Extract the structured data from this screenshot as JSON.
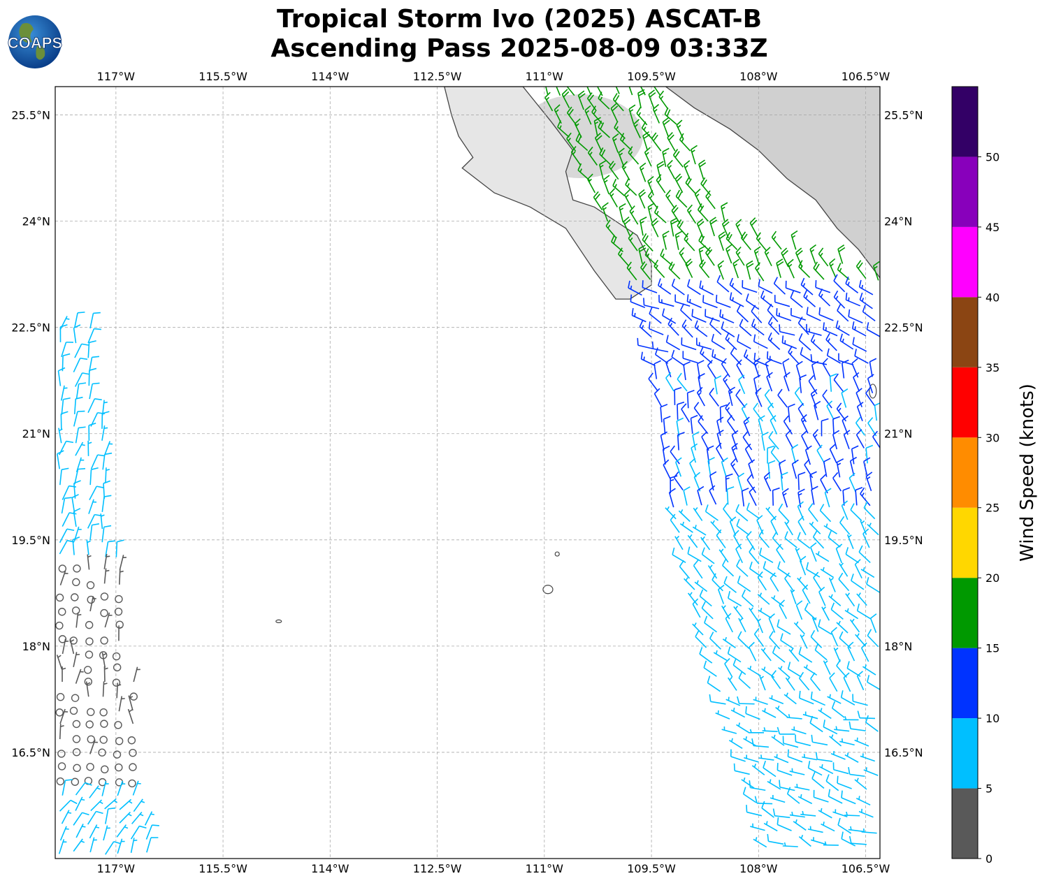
{
  "header": {
    "title_line1": "Tropical Storm Ivo (2025) ASCAT-B",
    "title_line2": "Ascending Pass 2025-08-09 03:33Z",
    "logo_text": "COAPS"
  },
  "map": {
    "lon_range": [
      -117.85,
      -106.3
    ],
    "lat_range": [
      15.0,
      25.9
    ],
    "lon_ticks": [
      {
        "value": -117.0,
        "label": "117°W"
      },
      {
        "value": -115.5,
        "label": "115.5°W"
      },
      {
        "value": -114.0,
        "label": "114°W"
      },
      {
        "value": -112.5,
        "label": "112.5°W"
      },
      {
        "value": -111.0,
        "label": "111°W"
      },
      {
        "value": -109.5,
        "label": "109.5°W"
      },
      {
        "value": -108.0,
        "label": "108°W"
      },
      {
        "value": -106.5,
        "label": "106.5°W"
      }
    ],
    "lat_ticks": [
      {
        "value": 25.5,
        "label": "25.5°N"
      },
      {
        "value": 24.0,
        "label": "24°N"
      },
      {
        "value": 22.5,
        "label": "22.5°N"
      },
      {
        "value": 21.0,
        "label": "21°N"
      },
      {
        "value": 19.5,
        "label": "19.5°N"
      },
      {
        "value": 18.0,
        "label": "18°N"
      },
      {
        "value": 16.5,
        "label": "16.5°N"
      }
    ],
    "gridlines": true,
    "baja_coast": [
      [
        -112.4,
        25.9
      ],
      [
        -112.3,
        25.5
      ],
      [
        -112.2,
        25.2
      ],
      [
        -112.0,
        24.9
      ],
      [
        -112.15,
        24.75
      ],
      [
        -111.7,
        24.4
      ],
      [
        -111.2,
        24.2
      ],
      [
        -110.7,
        23.9
      ],
      [
        -110.3,
        23.3
      ],
      [
        -110.0,
        22.9
      ],
      [
        -109.8,
        22.9
      ],
      [
        -109.5,
        23.1
      ],
      [
        -109.5,
        23.4
      ],
      [
        -109.7,
        23.8
      ],
      [
        -110.3,
        24.2
      ],
      [
        -110.6,
        24.3
      ],
      [
        -110.7,
        24.7
      ],
      [
        -110.6,
        25.0
      ],
      [
        -110.9,
        25.4
      ],
      [
        -111.3,
        25.9
      ]
    ],
    "mainland_coast": [
      [
        -109.3,
        25.9
      ],
      [
        -108.9,
        25.6
      ],
      [
        -108.4,
        25.3
      ],
      [
        -108.0,
        25.0
      ],
      [
        -107.6,
        24.6
      ],
      [
        -107.2,
        24.3
      ],
      [
        -106.9,
        23.9
      ],
      [
        -106.6,
        23.6
      ],
      [
        -106.3,
        23.2
      ]
    ],
    "islands": [
      {
        "name": "Socorro",
        "lon": -110.95,
        "lat": 18.8,
        "rx": 7,
        "ry": 6
      },
      {
        "name": "San Benedicto",
        "lon": -110.82,
        "lat": 19.3,
        "rx": 3,
        "ry": 3
      },
      {
        "name": "Clarion",
        "lon": -114.72,
        "lat": 18.35,
        "rx": 4,
        "ry": 2
      },
      {
        "name": "Islas Marias",
        "lon": -106.4,
        "lat": 21.6,
        "rx": 5,
        "ry": 10
      }
    ],
    "terrain_regions": [
      {
        "lon": -110.5,
        "lat": 25.2,
        "rx": 90,
        "ry": 60,
        "shade": "#c8c8c8"
      },
      {
        "lon": -110.0,
        "lat": 23.5,
        "rx": 35,
        "ry": 35,
        "shade": "#b8b8b8"
      },
      {
        "lon": -106.7,
        "lat": 25.3,
        "rx": 90,
        "ry": 120,
        "shade": "#8c8c8c"
      }
    ]
  },
  "colorbar": {
    "label": "Wind Speed (knots)",
    "range": [
      0,
      55
    ],
    "bins": [
      {
        "min": 0,
        "max": 5,
        "color": "#595959"
      },
      {
        "min": 5,
        "max": 10,
        "color": "#00bfff"
      },
      {
        "min": 10,
        "max": 15,
        "color": "#0033ff"
      },
      {
        "min": 15,
        "max": 20,
        "color": "#009900"
      },
      {
        "min": 20,
        "max": 25,
        "color": "#ffd700"
      },
      {
        "min": 25,
        "max": 30,
        "color": "#ff8c00"
      },
      {
        "min": 30,
        "max": 35,
        "color": "#ff0000"
      },
      {
        "min": 35,
        "max": 40,
        "color": "#8b4513"
      },
      {
        "min": 40,
        "max": 45,
        "color": "#ff00ff"
      },
      {
        "min": 45,
        "max": 50,
        "color": "#8800bb"
      },
      {
        "min": 50,
        "max": 55,
        "color": "#330066"
      }
    ],
    "ticks": [
      {
        "value": 0,
        "label": "0"
      },
      {
        "value": 5,
        "label": "5"
      },
      {
        "value": 10,
        "label": "10"
      },
      {
        "value": 15,
        "label": "15"
      },
      {
        "value": 20,
        "label": "20"
      },
      {
        "value": 25,
        "label": "25"
      },
      {
        "value": 30,
        "label": "30"
      },
      {
        "value": 35,
        "label": "35"
      },
      {
        "value": 40,
        "label": "40"
      },
      {
        "value": 45,
        "label": "45"
      },
      {
        "value": 50,
        "label": "50"
      }
    ]
  },
  "wind_swaths": [
    {
      "id": "west",
      "left_edge": [
        [
          -117.85,
          22.6
        ],
        [
          -117.85,
          15.0
        ]
      ],
      "right_edge": [
        [
          -117.3,
          22.6
        ],
        [
          -116.5,
          15.0
        ]
      ],
      "regions": [
        {
          "lat_min": 19.2,
          "lat_max": 22.6,
          "speed_kt": 8,
          "dir_deg": 10
        },
        {
          "lat_min": 15.0,
          "lat_max": 15.9,
          "speed_kt": 7,
          "dir_deg": 30
        },
        {
          "lat_min": 15.9,
          "lat_max": 19.2,
          "speed_kt": 3,
          "dir_deg": 0,
          "calm_fraction": 0.55
        }
      ]
    },
    {
      "id": "east",
      "left_edge": [
        [
          -111.1,
          25.9
        ],
        [
          -109.7,
          23.0
        ],
        [
          -109.5,
          21.8
        ],
        [
          -109.3,
          20.0
        ],
        [
          -108.8,
          18.0
        ],
        [
          -108.3,
          16.5
        ],
        [
          -107.9,
          15.0
        ]
      ],
      "right_edge": [
        [
          -109.4,
          25.9
        ],
        [
          -108.5,
          24.0
        ],
        [
          -106.3,
          23.2
        ],
        [
          -106.3,
          15.0
        ]
      ],
      "regions": [
        {
          "lat_min": 23.0,
          "lat_max": 25.9,
          "speed_kt": 17,
          "dir_deg": 330
        },
        {
          "lat_min": 21.8,
          "lat_max": 23.0,
          "speed_kt": 12,
          "dir_deg": 300
        },
        {
          "lat_min": 19.8,
          "lat_max": 21.8,
          "speed_kt": 11,
          "dir_deg": 340
        },
        {
          "lat_min": 17.3,
          "lat_max": 19.8,
          "speed_kt": 8,
          "dir_deg": 320
        },
        {
          "lat_min": 15.0,
          "lat_max": 17.3,
          "speed_kt": 7,
          "dir_deg": 290
        }
      ]
    }
  ]
}
